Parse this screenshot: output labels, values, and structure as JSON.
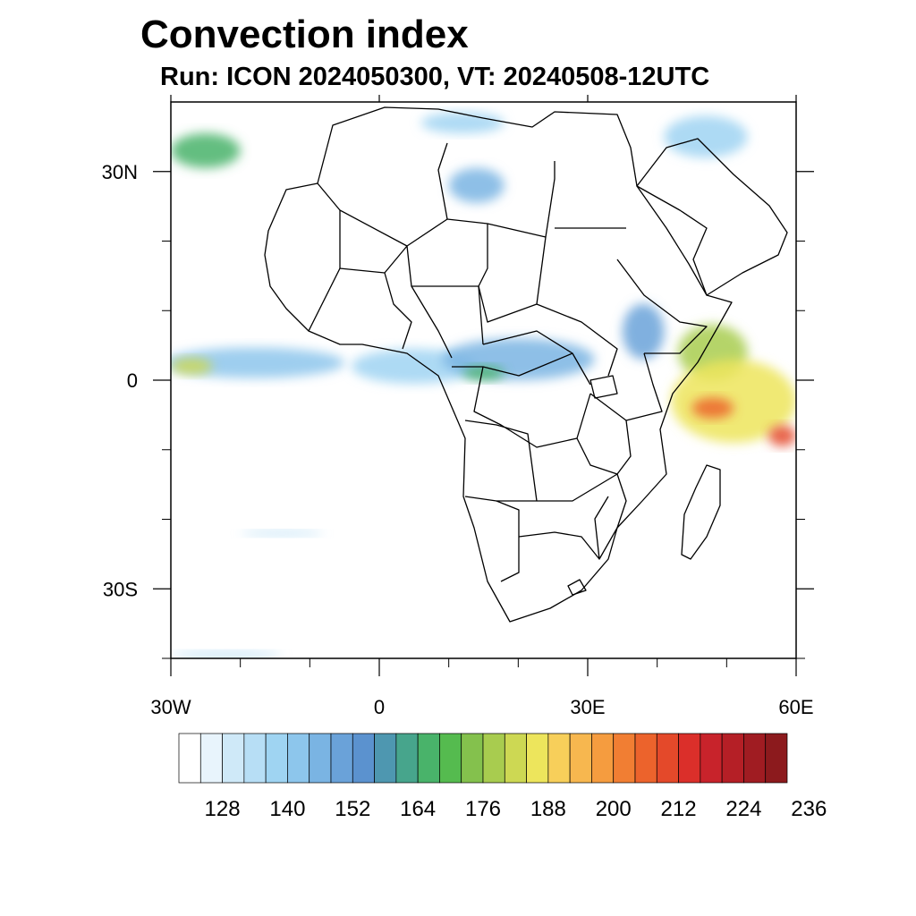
{
  "title": "Convection index",
  "subtitle": "Run: ICON 2024050300,  VT: 20240508-12UTC",
  "map": {
    "lon_range": [
      -30,
      60
    ],
    "lat_range": [
      -40,
      40
    ],
    "x_tick_labels": [
      {
        "lon": -30,
        "label": "30W"
      },
      {
        "lon": 0,
        "label": "0"
      },
      {
        "lon": 30,
        "label": "30E"
      },
      {
        "lon": 60,
        "label": "60E"
      }
    ],
    "y_tick_labels": [
      {
        "lat": 30,
        "label": "30N"
      },
      {
        "lat": 0,
        "label": "0"
      },
      {
        "lat": -30,
        "label": "30S"
      }
    ],
    "x_minor_ticks": [
      -20,
      -10,
      10,
      20,
      40,
      50
    ],
    "y_minor_ticks": [
      20,
      10,
      -10,
      -20,
      -40
    ]
  },
  "colorbar": {
    "labels": [
      {
        "index": 1,
        "label": "128"
      },
      {
        "index": 4,
        "label": "140"
      },
      {
        "index": 7,
        "label": "152"
      },
      {
        "index": 10,
        "label": "164"
      },
      {
        "index": 13,
        "label": "176"
      },
      {
        "index": 16,
        "label": "188"
      },
      {
        "index": 19,
        "label": "200"
      },
      {
        "index": 22,
        "label": "212"
      },
      {
        "index": 25,
        "label": "224"
      },
      {
        "index": 28,
        "label": "236"
      }
    ],
    "colors": [
      "#ffffff",
      "#e8f4fc",
      "#cfe9f8",
      "#b7def5",
      "#9fd4f2",
      "#8dc6ec",
      "#7ab4e3",
      "#6aa2d9",
      "#5b92cf",
      "#4e97b0",
      "#47a58c",
      "#49b36a",
      "#55bb4f",
      "#84c14d",
      "#a8cc4f",
      "#cdd853",
      "#ede55c",
      "#f7cf5a",
      "#f7b74f",
      "#f59c3f",
      "#f17e33",
      "#ec632c",
      "#e4492a",
      "#db2f2a",
      "#c8232b",
      "#b51f26",
      "#a01c22",
      "#8c1a1d"
    ]
  },
  "fields": [
    {
      "name": "atlantic-band",
      "lon": -18,
      "lat": 2.5,
      "rx": 13,
      "ry": 2.2,
      "level": 5
    },
    {
      "name": "atlantic-core",
      "lon": -27,
      "lat": 2,
      "rx": 3,
      "ry": 1.2,
      "level": 15
    },
    {
      "name": "gulf-guinea",
      "lon": 5,
      "lat": 2,
      "rx": 9,
      "ry": 2.5,
      "level": 4
    },
    {
      "name": "central-africa",
      "lon": 20,
      "lat": 3,
      "rx": 11,
      "ry": 3,
      "level": 6
    },
    {
      "name": "congo-core",
      "lon": 15,
      "lat": 1,
      "rx": 3,
      "ry": 1,
      "level": 11
    },
    {
      "name": "ethiopia",
      "lon": 38,
      "lat": 7,
      "rx": 3,
      "ry": 4,
      "level": 7
    },
    {
      "name": "horn-coast",
      "lon": 48,
      "lat": 4,
      "rx": 5,
      "ry": 4,
      "level": 14
    },
    {
      "name": "indian-ocean",
      "lon": 51,
      "lat": -3,
      "rx": 9,
      "ry": 6,
      "level": 16
    },
    {
      "name": "indian-core-1",
      "lon": 48,
      "lat": -4,
      "rx": 3,
      "ry": 1.5,
      "level": 21
    },
    {
      "name": "indian-core-2",
      "lon": 58,
      "lat": -8,
      "rx": 2,
      "ry": 1.5,
      "level": 22
    },
    {
      "name": "sahara-west",
      "lon": 14,
      "lat": 28,
      "rx": 4,
      "ry": 2.5,
      "level": 6
    },
    {
      "name": "libya-north",
      "lon": 12,
      "lat": 37,
      "rx": 6,
      "ry": 1.5,
      "level": 4
    },
    {
      "name": "northwest-atlantic",
      "lon": -25,
      "lat": 33,
      "rx": 5,
      "ry": 2.5,
      "level": 11
    },
    {
      "name": "mideast",
      "lon": 47,
      "lat": 35,
      "rx": 6,
      "ry": 3,
      "level": 4
    },
    {
      "name": "south-atlantic-streak",
      "lon": -14,
      "lat": -22,
      "rx": 6,
      "ry": 0.4,
      "level": 3
    },
    {
      "name": "south-edge",
      "lon": -22,
      "lat": -39.5,
      "rx": 8,
      "ry": 0.5,
      "level": 3
    }
  ]
}
